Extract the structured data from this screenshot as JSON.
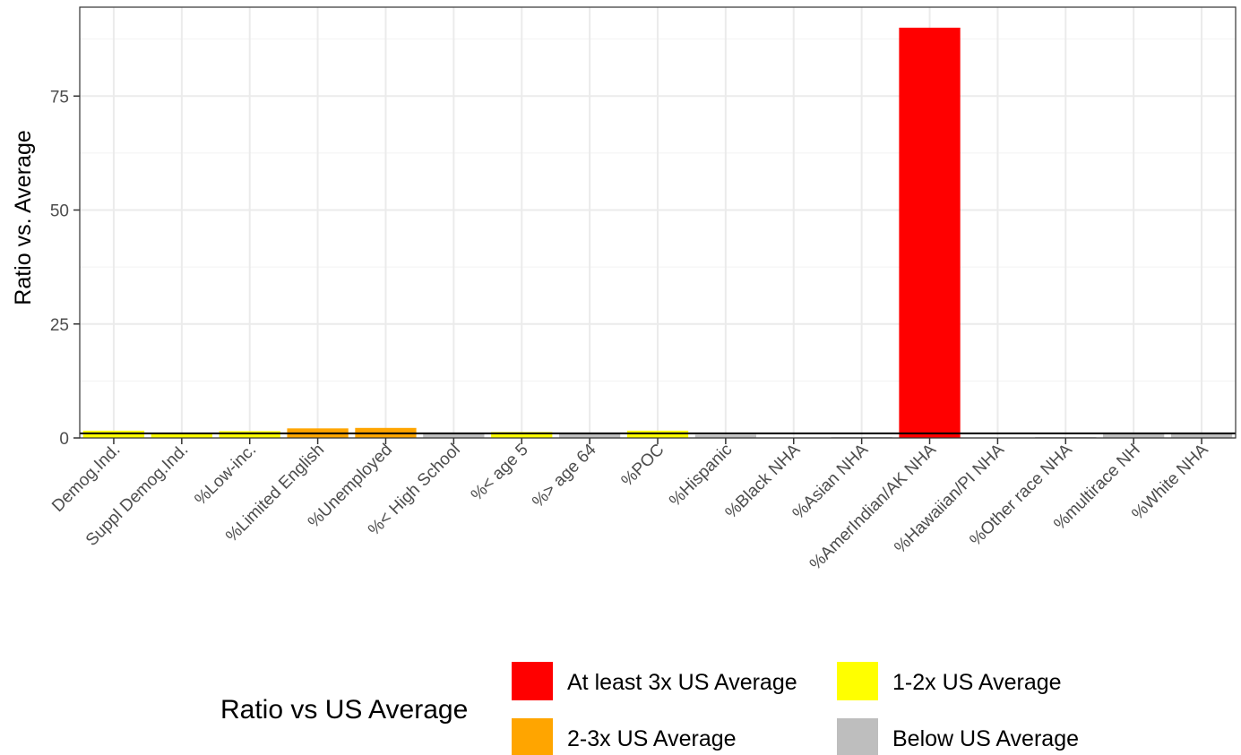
{
  "chart_data": {
    "type": "bar",
    "title": "",
    "xlabel": "",
    "ylabel": "Ratio vs. Average",
    "ylim": [
      0,
      94.5
    ],
    "yticks": [
      0,
      25,
      50,
      75
    ],
    "grid": true,
    "reference_line": 1,
    "categories": [
      "Demog.Ind.",
      "Suppl Demog.Ind.",
      "%Low-inc.",
      "%Limited English",
      "%Unemployed",
      "%< High School",
      "%< age 5",
      "%> age 64",
      "%POC",
      "%Hispanic",
      "%Black NHA",
      "%Asian NHA",
      "%AmerIndian/AK NHA",
      "%Hawaiian/PI NHA",
      "%Other race NHA",
      "%multirace NH",
      "%White NHA"
    ],
    "values": [
      1.6,
      1.1,
      1.5,
      2.1,
      2.2,
      0.8,
      1.3,
      0.9,
      1.6,
      0.7,
      0.1,
      0.2,
      90,
      0.1,
      0.2,
      0.8,
      0.9
    ],
    "value_class": [
      "1-2x US Average",
      "1-2x US Average",
      "1-2x US Average",
      "2-3x US Average",
      "2-3x US Average",
      "Below US Average",
      "1-2x US Average",
      "Below US Average",
      "1-2x US Average",
      "Below US Average",
      "Below US Average",
      "Below US Average",
      "At least 3x US Average",
      "Below US Average",
      "Below US Average",
      "Below US Average",
      "Below US Average"
    ],
    "legend": {
      "title": "Ratio vs US Average",
      "placement": "bottom",
      "entries": [
        {
          "label": "At least 3x US Average",
          "color": "#ff0000"
        },
        {
          "label": "2-3x US Average",
          "color": "#ffa500"
        },
        {
          "label": "1-2x US Average",
          "color": "#ffff00"
        },
        {
          "label": "Below US Average",
          "color": "#bebebe"
        }
      ]
    }
  }
}
